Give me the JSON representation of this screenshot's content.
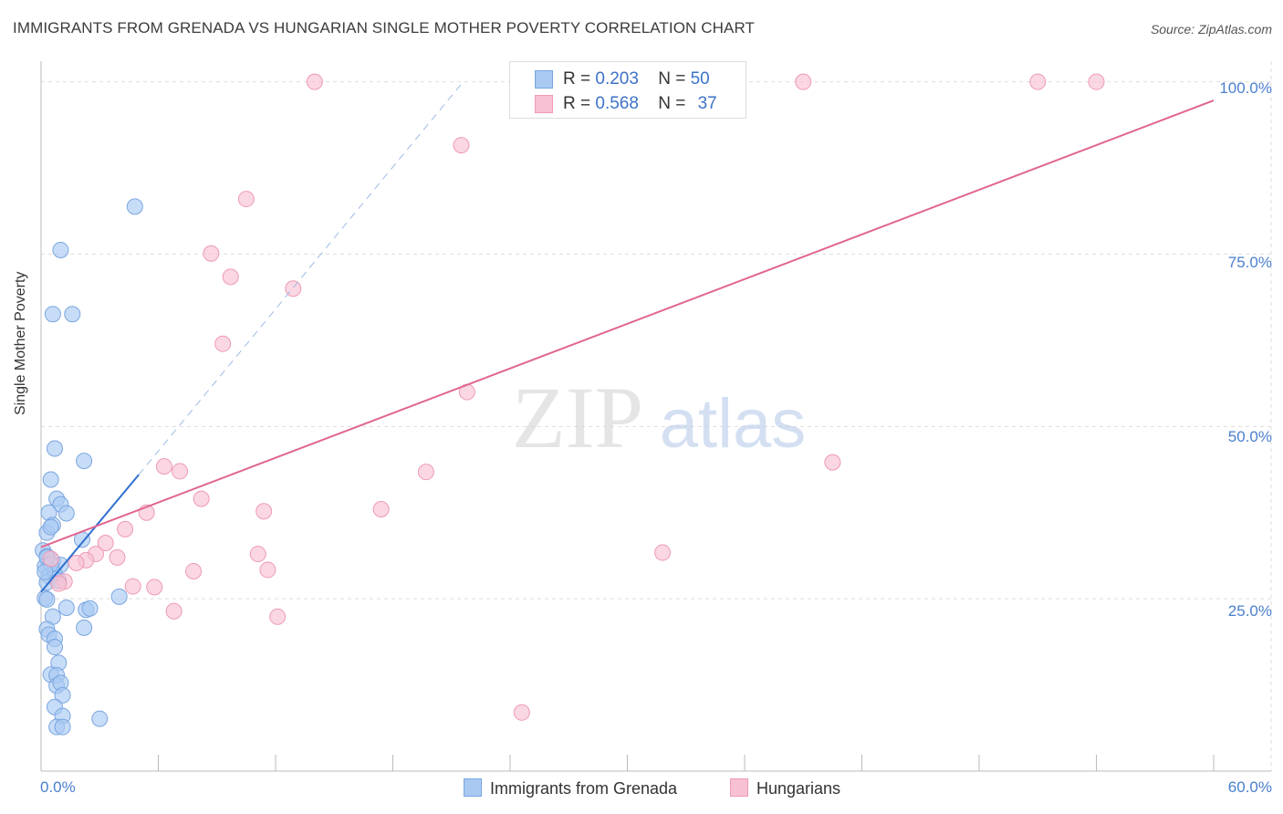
{
  "title": "IMMIGRANTS FROM GRENADA VS HUNGARIAN SINGLE MOTHER POVERTY CORRELATION CHART",
  "source": "Source: ZipAtlas.com",
  "watermark": {
    "zip": "ZIP",
    "atlas": "atlas"
  },
  "colors": {
    "blue_fill": "#a9c9f2",
    "blue_stroke": "#7aa6e0",
    "blue_line": "#2f6fd0",
    "pink_fill": "#f7c1d3",
    "pink_stroke": "#ee9ab6",
    "pink_line": "#e0668f",
    "grid": "#dddddd",
    "axis_text": "#4a7fcf"
  },
  "legend": {
    "r_label": "R =",
    "n_label": "N =",
    "items": [
      {
        "r": "0.203",
        "n": "50",
        "color": "#a9c9f2",
        "stroke": "#7aa6e0"
      },
      {
        "r": "0.568",
        "n": "37",
        "color": "#f7c1d3",
        "stroke": "#ee9ab6"
      }
    ]
  },
  "chart_data": {
    "type": "scatter",
    "title": "IMMIGRANTS FROM GRENADA VS HUNGARIAN SINGLE MOTHER POVERTY CORRELATION CHART",
    "xlabel": "",
    "ylabel": "Single Mother Poverty",
    "xlim": [
      0,
      60
    ],
    "ylim": [
      0,
      103
    ],
    "x_tick_labels": [
      "0.0%",
      "60.0%"
    ],
    "y_ticks": [
      25,
      50,
      75,
      100
    ],
    "y_tick_labels": [
      "25.0%",
      "50.0%",
      "75.0%",
      "100.0%"
    ],
    "grid": true,
    "series": [
      {
        "name": "Immigrants from Grenada",
        "color": "#a9c9f2",
        "points": [
          [
            4.8,
            81.9
          ],
          [
            1.0,
            75.6
          ],
          [
            0.6,
            66.3
          ],
          [
            1.6,
            66.3
          ],
          [
            0.7,
            46.8
          ],
          [
            2.2,
            45.0
          ],
          [
            0.5,
            42.3
          ],
          [
            0.8,
            39.5
          ],
          [
            1.0,
            38.7
          ],
          [
            1.3,
            37.4
          ],
          [
            0.4,
            37.5
          ],
          [
            0.3,
            34.6
          ],
          [
            0.6,
            35.7
          ],
          [
            0.5,
            35.4
          ],
          [
            2.1,
            33.6
          ],
          [
            0.1,
            32.0
          ],
          [
            0.3,
            31.2
          ],
          [
            0.6,
            30.4
          ],
          [
            0.2,
            29.7
          ],
          [
            1.0,
            29.9
          ],
          [
            0.4,
            28.3
          ],
          [
            0.7,
            28.6
          ],
          [
            0.3,
            27.4
          ],
          [
            0.9,
            27.6
          ],
          [
            0.2,
            25.1
          ],
          [
            0.3,
            24.9
          ],
          [
            4.0,
            25.3
          ],
          [
            1.3,
            23.7
          ],
          [
            2.3,
            23.4
          ],
          [
            2.5,
            23.6
          ],
          [
            0.6,
            22.4
          ],
          [
            2.2,
            20.8
          ],
          [
            0.3,
            20.6
          ],
          [
            0.4,
            19.8
          ],
          [
            0.7,
            19.2
          ],
          [
            0.7,
            18.0
          ],
          [
            0.9,
            15.7
          ],
          [
            0.5,
            14.0
          ],
          [
            0.8,
            13.9
          ],
          [
            0.8,
            12.4
          ],
          [
            1.0,
            12.8
          ],
          [
            1.1,
            11.0
          ],
          [
            0.7,
            9.3
          ],
          [
            1.1,
            8.0
          ],
          [
            3.0,
            7.6
          ],
          [
            0.8,
            6.4
          ],
          [
            1.1,
            6.4
          ],
          [
            0.3,
            31.0
          ],
          [
            0.5,
            30.0
          ],
          [
            0.2,
            28.9
          ]
        ]
      },
      {
        "name": "Hungarians",
        "color": "#f7c1d3",
        "points": [
          [
            14.0,
            100.0
          ],
          [
            39.0,
            100.0
          ],
          [
            51.0,
            100.0
          ],
          [
            54.0,
            100.0
          ],
          [
            21.5,
            90.8
          ],
          [
            10.5,
            83.0
          ],
          [
            8.7,
            75.1
          ],
          [
            9.7,
            71.7
          ],
          [
            12.9,
            70.0
          ],
          [
            9.3,
            62.0
          ],
          [
            21.8,
            55.0
          ],
          [
            6.3,
            44.2
          ],
          [
            7.1,
            43.5
          ],
          [
            19.7,
            43.4
          ],
          [
            40.5,
            44.8
          ],
          [
            8.2,
            39.5
          ],
          [
            5.4,
            37.5
          ],
          [
            11.4,
            37.7
          ],
          [
            17.4,
            38.0
          ],
          [
            4.3,
            35.1
          ],
          [
            3.3,
            33.1
          ],
          [
            2.8,
            31.5
          ],
          [
            3.9,
            31.0
          ],
          [
            11.1,
            31.5
          ],
          [
            31.8,
            31.7
          ],
          [
            2.3,
            30.6
          ],
          [
            1.8,
            30.2
          ],
          [
            7.8,
            29.0
          ],
          [
            11.6,
            29.2
          ],
          [
            1.2,
            27.5
          ],
          [
            4.7,
            26.8
          ],
          [
            5.8,
            26.7
          ],
          [
            0.9,
            27.2
          ],
          [
            6.8,
            23.2
          ],
          [
            12.1,
            22.4
          ],
          [
            24.6,
            8.5
          ],
          [
            0.5,
            30.8
          ]
        ]
      }
    ],
    "trendlines": [
      {
        "series": "Immigrants from Grenada",
        "x": [
          0.0,
          5.0
        ],
        "y": [
          26.0,
          43.0
        ],
        "dashed_extension": [
          5.0,
          21.6,
          43.0,
          100.0
        ]
      },
      {
        "series": "Hungarians",
        "x": [
          0.0,
          60.0
        ],
        "y": [
          32.5,
          97.3
        ]
      }
    ]
  }
}
